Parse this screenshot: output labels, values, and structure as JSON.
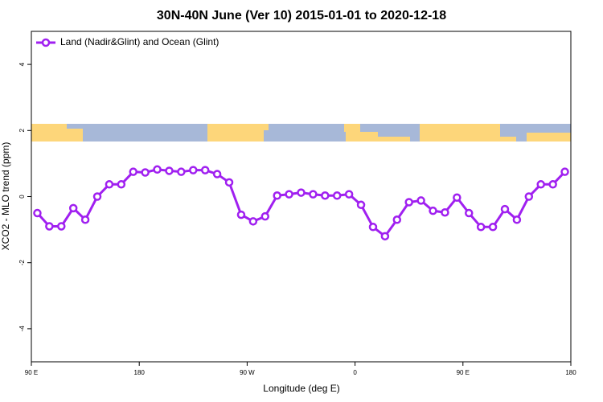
{
  "chart_data": {
    "type": "line",
    "title": "30N-40N June (Ver 10)   2015-01-01 to 2020-12-18",
    "x_label": "Longitude (deg E)",
    "y_label": "XCO2 - MLO trend (ppm)",
    "x": [
      95,
      105,
      115,
      125,
      135,
      145,
      155,
      165,
      175,
      185,
      195,
      205,
      215,
      225,
      235,
      245,
      255,
      265,
      275,
      285,
      295,
      305,
      315,
      325,
      335,
      345,
      355,
      365,
      375,
      385,
      395,
      405,
      415,
      425,
      435,
      445,
      455,
      465,
      475,
      485,
      495,
      505,
      515,
      525,
      535
    ],
    "series": [
      {
        "name": "Land (Nadir&Glint) and Ocean (Glint)",
        "color": "#a020f0",
        "values": [
          -0.5,
          -0.9,
          -0.9,
          -0.35,
          -0.7,
          0,
          0.37,
          0.37,
          0.75,
          0.73,
          0.82,
          0.78,
          0.75,
          0.8,
          0.8,
          0.68,
          0.43,
          -0.55,
          -0.75,
          -0.6,
          0.03,
          0.07,
          0.12,
          0.07,
          0.03,
          0.03,
          0.07,
          -0.25,
          -0.92,
          -1.2,
          -0.7,
          -0.17,
          -0.12,
          -0.43,
          -0.48,
          -0.03,
          -0.5,
          -0.92,
          -0.92,
          -0.38,
          -0.7,
          0,
          0.37,
          0.37,
          0.75
        ]
      }
    ],
    "xlim": [
      90,
      540
    ],
    "xticks": [
      {
        "value": 90,
        "label": "90 E"
      },
      180,
      {
        "value": 270,
        "label": "90 W"
      },
      {
        "value": 360,
        "label": "0"
      },
      {
        "value": 450,
        "label": "90 E"
      },
      {
        "value": 540,
        "label": "180"
      }
    ],
    "ylim": [
      -5,
      5
    ],
    "yticks": [
      -4,
      -2,
      0,
      2,
      4
    ],
    "legend": "top-left"
  }
}
